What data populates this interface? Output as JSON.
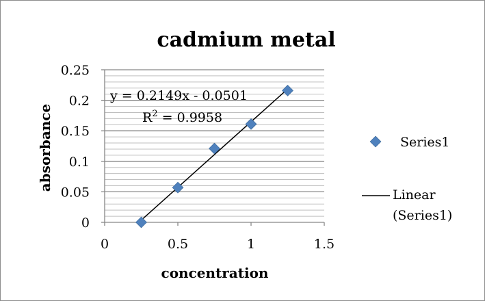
{
  "chart_data": {
    "type": "scatter",
    "title": "cadmium metal",
    "xlabel": "concentration",
    "ylabel": "absorbance",
    "xlim": [
      0,
      1.5
    ],
    "ylim": [
      0,
      0.25
    ],
    "x_ticks": [
      "0",
      "0.5",
      "1",
      "1.5"
    ],
    "y_ticks": [
      "0",
      "0.05",
      "0.1",
      "0.15",
      "0.2",
      "0.25"
    ],
    "grid": true,
    "legend_position": "right",
    "series": [
      {
        "name": "Series1",
        "x": [
          0.25,
          0.5,
          0.75,
          1.0,
          1.25
        ],
        "y": [
          0.0,
          0.057,
          0.121,
          0.161,
          0.216
        ],
        "color": "#4f81bd",
        "marker": "diamond"
      }
    ],
    "trendline": {
      "name": "Linear (Series1)",
      "legend_lines": [
        "Linear",
        "(Series1)"
      ],
      "slope": 0.2149,
      "intercept": -0.0501,
      "x_range": [
        0.25,
        1.25
      ],
      "color": "#000000",
      "equation": "y = 0.2149x - 0.0501",
      "r2_label": "R",
      "r2_exponent": "2",
      "r2_value": " = 0.9958"
    }
  }
}
